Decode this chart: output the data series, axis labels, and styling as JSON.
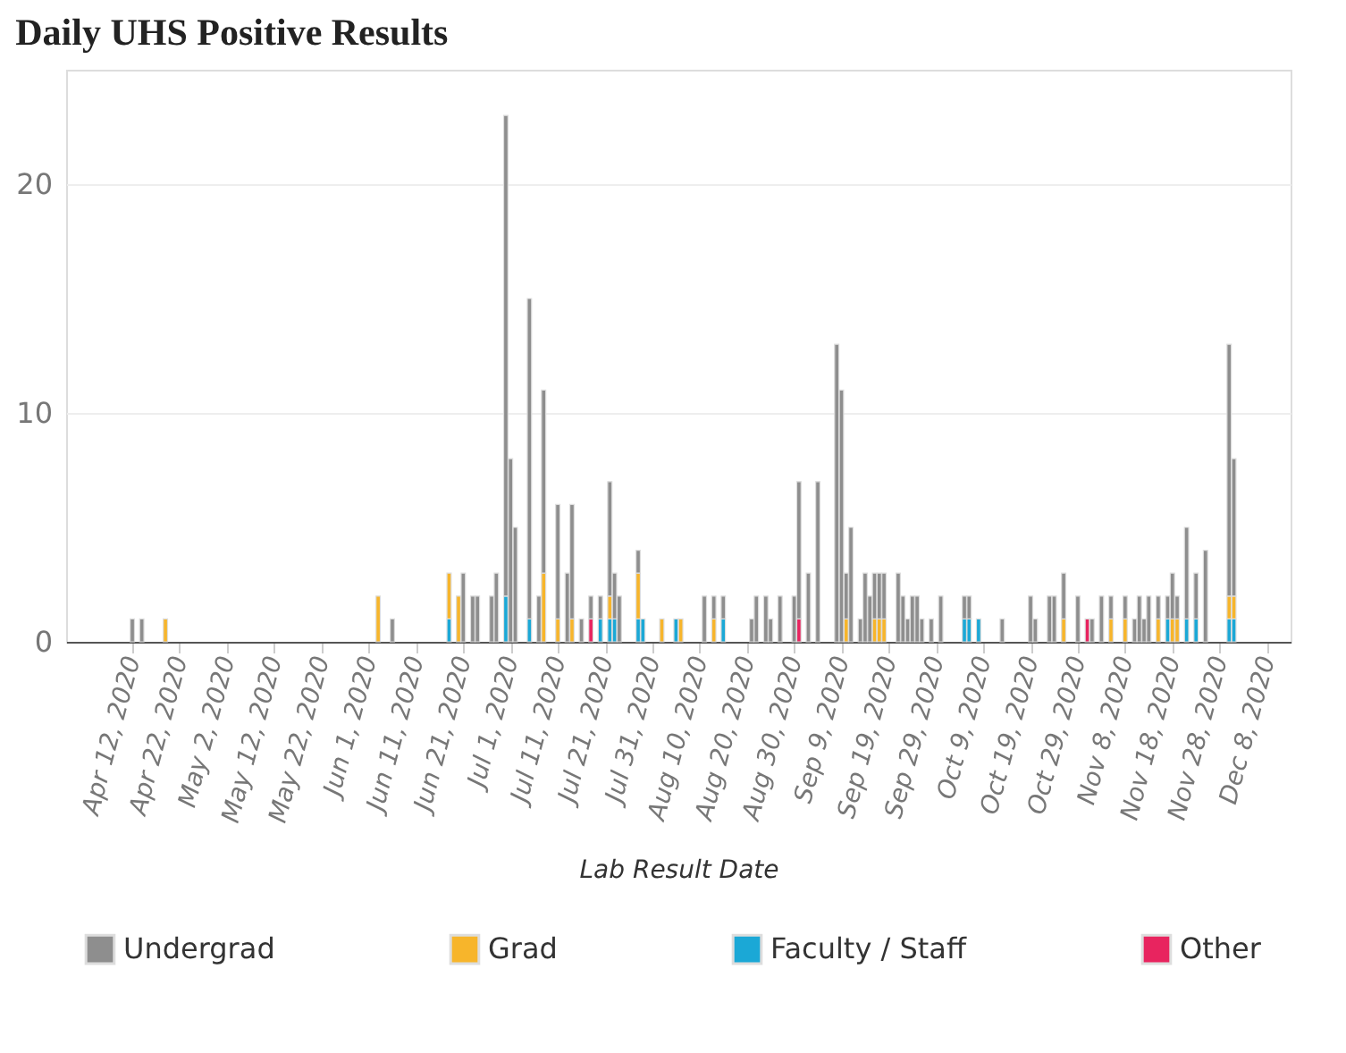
{
  "chart_data": {
    "type": "bar",
    "title": "Daily UHS Positive Results",
    "xlabel": "Lab Result Date",
    "stacked": true,
    "x": [
      "2020-04-12",
      "2020-04-14",
      "2020-04-19",
      "2020-06-03",
      "2020-06-06",
      "2020-06-18",
      "2020-06-20",
      "2020-06-21",
      "2020-06-23",
      "2020-06-24",
      "2020-06-27",
      "2020-06-28",
      "2020-06-30",
      "2020-07-01",
      "2020-07-02",
      "2020-07-05",
      "2020-07-07",
      "2020-07-08",
      "2020-07-11",
      "2020-07-13",
      "2020-07-14",
      "2020-07-16",
      "2020-07-18",
      "2020-07-20",
      "2020-07-22",
      "2020-07-23",
      "2020-07-24",
      "2020-07-28",
      "2020-07-29",
      "2020-08-02",
      "2020-08-05",
      "2020-08-06",
      "2020-08-11",
      "2020-08-13",
      "2020-08-15",
      "2020-08-21",
      "2020-08-22",
      "2020-08-24",
      "2020-08-25",
      "2020-08-27",
      "2020-08-30",
      "2020-08-31",
      "2020-09-02",
      "2020-09-04",
      "2020-09-08",
      "2020-09-09",
      "2020-09-10",
      "2020-09-11",
      "2020-09-13",
      "2020-09-14",
      "2020-09-15",
      "2020-09-16",
      "2020-09-17",
      "2020-09-18",
      "2020-09-21",
      "2020-09-22",
      "2020-09-23",
      "2020-09-24",
      "2020-09-25",
      "2020-09-26",
      "2020-09-28",
      "2020-09-30",
      "2020-10-05",
      "2020-10-06",
      "2020-10-08",
      "2020-10-13",
      "2020-10-19",
      "2020-10-20",
      "2020-10-23",
      "2020-10-24",
      "2020-10-26",
      "2020-10-29",
      "2020-10-31",
      "2020-11-01",
      "2020-11-03",
      "2020-11-05",
      "2020-11-08",
      "2020-11-10",
      "2020-11-11",
      "2020-11-12",
      "2020-11-13",
      "2020-11-15",
      "2020-11-17",
      "2020-11-18",
      "2020-11-19",
      "2020-11-21",
      "2020-11-23",
      "2020-11-25",
      "2020-11-30",
      "2020-12-01"
    ],
    "series": [
      {
        "name": "Other",
        "color": "#e8245f",
        "values": [
          null,
          null,
          null,
          null,
          null,
          null,
          null,
          null,
          null,
          null,
          null,
          null,
          null,
          null,
          null,
          null,
          null,
          null,
          null,
          null,
          null,
          null,
          1,
          null,
          null,
          null,
          null,
          null,
          null,
          null,
          null,
          null,
          null,
          null,
          null,
          null,
          null,
          null,
          null,
          null,
          null,
          1,
          null,
          null,
          null,
          null,
          null,
          null,
          null,
          null,
          null,
          null,
          null,
          null,
          null,
          null,
          null,
          null,
          null,
          null,
          null,
          null,
          null,
          null,
          null,
          null,
          null,
          null,
          null,
          null,
          null,
          null,
          1,
          null,
          null,
          null,
          null,
          null,
          null,
          null,
          null,
          null,
          null,
          null,
          null,
          null,
          null,
          null,
          null,
          null
        ]
      },
      {
        "name": "Faculty / Staff",
        "color": "#1ba8d6",
        "values": [
          null,
          null,
          null,
          null,
          null,
          1,
          null,
          null,
          null,
          null,
          null,
          null,
          2,
          null,
          null,
          1,
          null,
          null,
          null,
          null,
          null,
          null,
          null,
          1,
          1,
          1,
          null,
          1,
          1,
          null,
          1,
          null,
          null,
          null,
          1,
          null,
          null,
          null,
          null,
          null,
          null,
          null,
          null,
          null,
          null,
          null,
          null,
          null,
          null,
          null,
          null,
          null,
          null,
          null,
          null,
          null,
          null,
          null,
          null,
          null,
          null,
          null,
          1,
          1,
          1,
          null,
          null,
          null,
          null,
          null,
          null,
          null,
          null,
          null,
          null,
          null,
          null,
          null,
          null,
          null,
          null,
          null,
          1,
          null,
          null,
          1,
          1,
          null,
          1,
          1
        ]
      },
      {
        "name": "Grad",
        "color": "#f7b52b",
        "values": [
          null,
          null,
          1,
          2,
          null,
          2,
          2,
          null,
          null,
          null,
          null,
          null,
          null,
          null,
          null,
          null,
          null,
          3,
          1,
          null,
          1,
          null,
          null,
          null,
          1,
          null,
          null,
          2,
          null,
          1,
          null,
          1,
          null,
          1,
          null,
          null,
          null,
          null,
          null,
          null,
          null,
          null,
          null,
          null,
          null,
          null,
          1,
          null,
          null,
          null,
          null,
          1,
          1,
          1,
          null,
          null,
          null,
          null,
          null,
          null,
          null,
          null,
          null,
          null,
          null,
          null,
          null,
          null,
          null,
          null,
          1,
          null,
          null,
          null,
          null,
          1,
          1,
          null,
          null,
          null,
          null,
          1,
          null,
          1,
          1,
          null,
          null,
          null,
          1,
          1
        ]
      },
      {
        "name": "Undergrad",
        "color": "#8e8e8e",
        "values": [
          1,
          1,
          null,
          null,
          1,
          null,
          null,
          3,
          2,
          2,
          2,
          3,
          21,
          8,
          5,
          14,
          2,
          8,
          5,
          3,
          5,
          1,
          1,
          1,
          5,
          2,
          2,
          1,
          null,
          null,
          null,
          null,
          2,
          1,
          1,
          1,
          2,
          2,
          1,
          2,
          2,
          6,
          3,
          7,
          13,
          11,
          2,
          5,
          1,
          3,
          2,
          2,
          2,
          2,
          3,
          2,
          1,
          2,
          2,
          1,
          1,
          2,
          1,
          1,
          null,
          1,
          2,
          1,
          2,
          2,
          2,
          2,
          null,
          1,
          2,
          1,
          1,
          1,
          2,
          1,
          2,
          1,
          1,
          2,
          1,
          4,
          2,
          4,
          11,
          6
        ]
      }
    ],
    "xlim": [
      "2020-03-29",
      "2020-12-13"
    ],
    "xticks": [
      {
        "value": "2020-04-12",
        "label": "Apr 12, 2020"
      },
      {
        "value": "2020-04-22",
        "label": "Apr 22, 2020"
      },
      {
        "value": "2020-05-02",
        "label": "May 2, 2020"
      },
      {
        "value": "2020-05-12",
        "label": "May 12, 2020"
      },
      {
        "value": "2020-05-22",
        "label": "May 22, 2020"
      },
      {
        "value": "2020-06-01",
        "label": "Jun 1, 2020"
      },
      {
        "value": "2020-06-11",
        "label": "Jun 11, 2020"
      },
      {
        "value": "2020-06-21",
        "label": "Jun 21, 2020"
      },
      {
        "value": "2020-07-01",
        "label": "Jul 1, 2020"
      },
      {
        "value": "2020-07-11",
        "label": "Jul 11, 2020"
      },
      {
        "value": "2020-07-21",
        "label": "Jul 21, 2020"
      },
      {
        "value": "2020-07-31",
        "label": "Jul 31, 2020"
      },
      {
        "value": "2020-08-10",
        "label": "Aug 10, 2020"
      },
      {
        "value": "2020-08-20",
        "label": "Aug 20, 2020"
      },
      {
        "value": "2020-08-30",
        "label": "Aug 30, 2020"
      },
      {
        "value": "2020-09-09",
        "label": "Sep 9, 2020"
      },
      {
        "value": "2020-09-19",
        "label": "Sep 19, 2020"
      },
      {
        "value": "2020-09-29",
        "label": "Sep 29, 2020"
      },
      {
        "value": "2020-10-09",
        "label": "Oct 9, 2020"
      },
      {
        "value": "2020-10-19",
        "label": "Oct 19, 2020"
      },
      {
        "value": "2020-10-29",
        "label": "Oct 29, 2020"
      },
      {
        "value": "2020-11-08",
        "label": "Nov 8, 2020"
      },
      {
        "value": "2020-11-18",
        "label": "Nov 18, 2020"
      },
      {
        "value": "2020-11-28",
        "label": "Nov 28, 2020"
      },
      {
        "value": "2020-12-08",
        "label": "Dec 8, 2020"
      }
    ],
    "ylim": [
      0,
      25
    ],
    "yticks": [
      0,
      10,
      20
    ],
    "grid": "y",
    "legend": "bottom"
  }
}
